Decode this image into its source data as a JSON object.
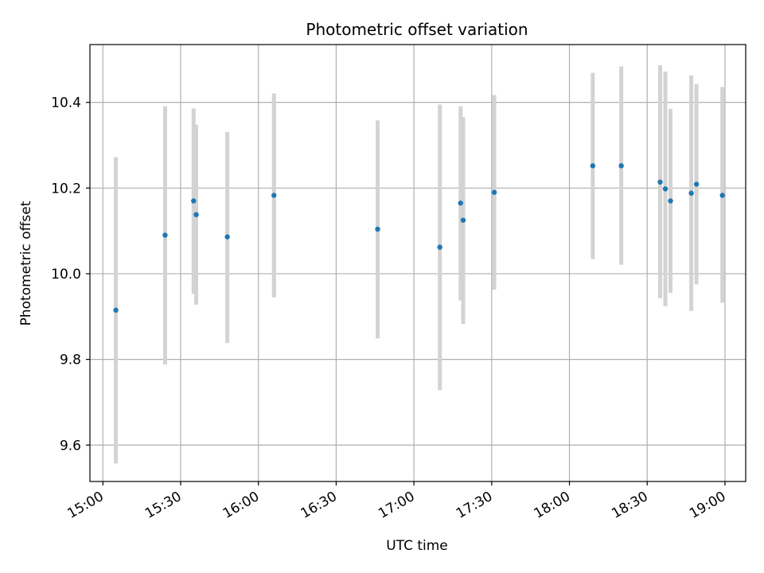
{
  "chart_data": {
    "type": "scatter",
    "title": "Photometric offset variation",
    "xlabel": "UTC time",
    "ylabel": "Photometric offset",
    "xlim": [
      "14:55",
      "19:08"
    ],
    "ylim": [
      9.515,
      10.535
    ],
    "grid": true,
    "x_ticks": [
      "15:00",
      "15:30",
      "16:00",
      "16:30",
      "17:00",
      "17:30",
      "18:00",
      "18:30",
      "19:00"
    ],
    "y_ticks": [
      9.6,
      9.8,
      10.0,
      10.2,
      10.4
    ],
    "y_tick_labels": [
      "9.6",
      "9.8",
      "10.0",
      "10.2",
      "10.4"
    ],
    "marker_color": "#1f77b4",
    "errorbar_color": "#d3d3d3",
    "series": [
      {
        "points": [
          {
            "x": "15:05",
            "y": 9.915,
            "ylo": 9.557,
            "yhi": 10.272
          },
          {
            "x": "15:24",
            "y": 10.09,
            "ylo": 9.788,
            "yhi": 10.391
          },
          {
            "x": "15:35",
            "y": 10.17,
            "ylo": 9.953,
            "yhi": 10.386
          },
          {
            "x": "15:36",
            "y": 10.138,
            "ylo": 9.928,
            "yhi": 10.348
          },
          {
            "x": "15:48",
            "y": 10.086,
            "ylo": 9.838,
            "yhi": 10.331
          },
          {
            "x": "16:06",
            "y": 10.183,
            "ylo": 9.945,
            "yhi": 10.421
          },
          {
            "x": "16:46",
            "y": 10.104,
            "ylo": 9.849,
            "yhi": 10.358
          },
          {
            "x": "17:10",
            "y": 10.062,
            "ylo": 9.728,
            "yhi": 10.395
          },
          {
            "x": "17:18",
            "y": 10.165,
            "ylo": 9.938,
            "yhi": 10.391
          },
          {
            "x": "17:19",
            "y": 10.125,
            "ylo": 9.883,
            "yhi": 10.366
          },
          {
            "x": "17:31",
            "y": 10.19,
            "ylo": 9.963,
            "yhi": 10.417
          },
          {
            "x": "18:09",
            "y": 10.252,
            "ylo": 10.034,
            "yhi": 10.469
          },
          {
            "x": "18:20",
            "y": 10.252,
            "ylo": 10.021,
            "yhi": 10.484
          },
          {
            "x": "18:35",
            "y": 10.214,
            "ylo": 9.943,
            "yhi": 10.487
          },
          {
            "x": "18:37",
            "y": 10.198,
            "ylo": 9.924,
            "yhi": 10.472
          },
          {
            "x": "18:39",
            "y": 10.17,
            "ylo": 9.955,
            "yhi": 10.385
          },
          {
            "x": "18:47",
            "y": 10.188,
            "ylo": 9.913,
            "yhi": 10.463
          },
          {
            "x": "18:49",
            "y": 10.209,
            "ylo": 9.975,
            "yhi": 10.443
          },
          {
            "x": "18:59",
            "y": 10.183,
            "ylo": 9.932,
            "yhi": 10.436
          }
        ]
      }
    ]
  }
}
